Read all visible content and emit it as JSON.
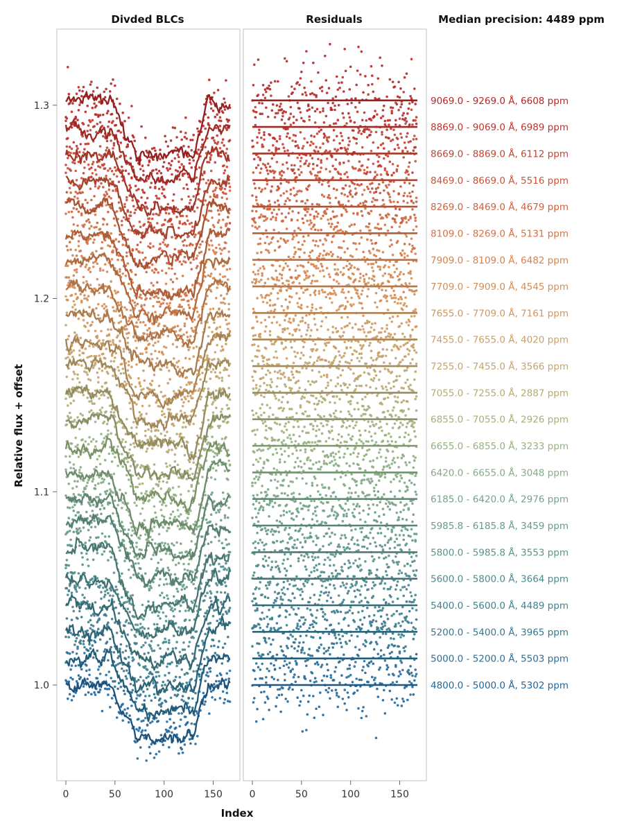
{
  "chart_data": {
    "type": "scatter",
    "panels": [
      {
        "title": "Divded BLCs"
      },
      {
        "title": "Residuals"
      }
    ],
    "header": "Median precision: 4489 ppm",
    "xlabel": "Index",
    "ylabel": "Relative flux + offset",
    "xlim": [
      -8,
      176
    ],
    "ylim": [
      0.95,
      1.335
    ],
    "x_ticks": [
      0,
      50,
      100,
      150
    ],
    "y_ticks": [
      1.0,
      1.1,
      1.2,
      1.3
    ],
    "y_tick_labels": [
      "1.0",
      "1.1",
      "1.2",
      "1.3"
    ],
    "n_points": 168,
    "offset_step": 0.01375,
    "transit": {
      "depth": 0.028,
      "ingress_start": 45,
      "full_start": 72,
      "full_end": 130,
      "egress_end": 145
    },
    "series": [
      {
        "band": "4800.0 - 5000.0 Å",
        "precision_ppm": 5302,
        "label": "4800.0 - 5000.0 Å, 5302 ppm",
        "color": "#21669a"
      },
      {
        "band": "5000.0 - 5200.0 Å",
        "precision_ppm": 5503,
        "label": "5000.0 - 5200.0 Å, 5503 ppm",
        "color": "#2a6f95"
      },
      {
        "band": "5200.0 - 5400.0 Å",
        "precision_ppm": 3965,
        "label": "5200.0 - 5400.0 Å, 3965 ppm",
        "color": "#35788f"
      },
      {
        "band": "5400.0 - 5600.0 Å",
        "precision_ppm": 4489,
        "label": "5400.0 - 5600.0 Å, 4489 ppm",
        "color": "#41818d"
      },
      {
        "band": "5600.0 - 5800.0 Å",
        "precision_ppm": 3664,
        "label": "5600.0 - 5800.0 Å, 3664 ppm",
        "color": "#4d8a8c"
      },
      {
        "band": "5800.0 - 5985.8 Å",
        "precision_ppm": 3553,
        "label": "5800.0 - 5985.8 Å, 3553 ppm",
        "color": "#5a938b"
      },
      {
        "band": "5985.8 - 6185.8 Å",
        "precision_ppm": 3459,
        "label": "5985.8 - 6185.8 Å, 3459 ppm",
        "color": "#689b89"
      },
      {
        "band": "6185.0 - 6420.0 Å",
        "precision_ppm": 2976,
        "label": "6185.0 - 6420.0 Å, 2976 ppm",
        "color": "#76a387"
      },
      {
        "band": "6420.0 - 6655.0 Å",
        "precision_ppm": 3048,
        "label": "6420.0 - 6655.0 Å, 3048 ppm",
        "color": "#86ab84"
      },
      {
        "band": "6655.0 - 6855.0 Å",
        "precision_ppm": 3233,
        "label": "6655.0 - 6855.0 Å, 3233 ppm",
        "color": "#96b17f"
      },
      {
        "band": "6855.0 - 7055.0 Å",
        "precision_ppm": 2926,
        "label": "6855.0 - 7055.0 Å, 2926 ppm",
        "color": "#a6ae7a"
      },
      {
        "band": "7055.0 - 7255.0 Å",
        "precision_ppm": 2887,
        "label": "7055.0 - 7255.0 Å, 2887 ppm",
        "color": "#b5aa74"
      },
      {
        "band": "7255.0 - 7455.0 Å",
        "precision_ppm": 3566,
        "label": "7255.0 - 7455.0 Å, 3566 ppm",
        "color": "#c2a56e"
      },
      {
        "band": "7455.0 - 7655.0 Å",
        "precision_ppm": 4020,
        "label": "7455.0 - 7655.0 Å, 4020 ppm",
        "color": "#cb9f66"
      },
      {
        "band": "7655.0 - 7709.0 Å",
        "precision_ppm": 7161,
        "label": "7655.0 - 7709.0 Å, 7161 ppm",
        "color": "#d0975e"
      },
      {
        "band": "7709.0 - 7909.0 Å",
        "precision_ppm": 4545,
        "label": "7709.0 - 7909.0 Å, 4545 ppm",
        "color": "#d48d55"
      },
      {
        "band": "7909.0 - 8109.0 Å",
        "precision_ppm": 6482,
        "label": "7909.0 - 8109.0 Å, 6482 ppm",
        "color": "#d6824d"
      },
      {
        "band": "8109.0 - 8269.0 Å",
        "precision_ppm": 5131,
        "label": "8109.0 - 8269.0 Å, 5131 ppm",
        "color": "#d27345"
      },
      {
        "band": "8269.0 - 8469.0 Å",
        "precision_ppm": 4679,
        "label": "8269.0 - 8469.0 Å, 4679 ppm",
        "color": "#cd623e"
      },
      {
        "band": "8469.0 - 8669.0 Å",
        "precision_ppm": 5516,
        "label": "8469.0 - 8669.0 Å, 5516 ppm",
        "color": "#c85238"
      },
      {
        "band": "8669.0 - 8869.0 Å",
        "precision_ppm": 6112,
        "label": "8669.0 - 8869.0 Å, 6112 ppm",
        "color": "#c34232"
      },
      {
        "band": "8869.0 - 9069.0 Å",
        "precision_ppm": 6989,
        "label": "8869.0 - 9069.0 Å, 6989 ppm",
        "color": "#bd332c"
      },
      {
        "band": "9069.0 - 9269.0 Å",
        "precision_ppm": 6608,
        "label": "9069.0 - 9269.0 Å, 6608 ppm",
        "color": "#b52626"
      }
    ]
  }
}
